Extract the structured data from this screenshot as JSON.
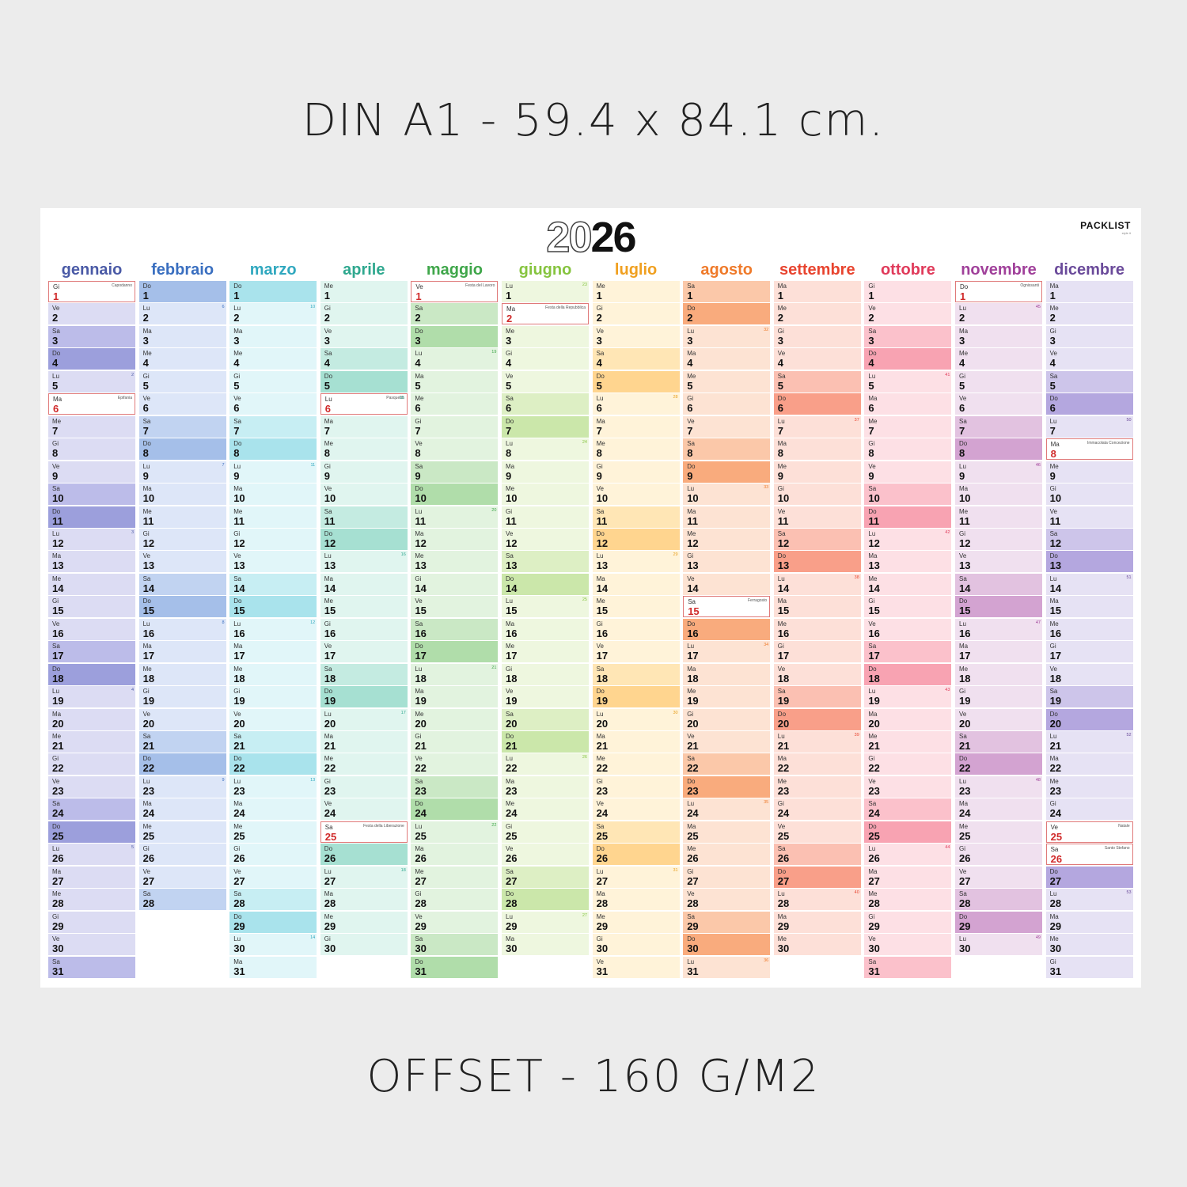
{
  "captions": {
    "top": "DIN A1 - 59.4 x 84.1 cm.",
    "bottom": "OFFSET - 160 G/M2"
  },
  "calendar": {
    "year_parts": [
      "20",
      "26"
    ],
    "brand": "PACKLIST",
    "brand_sub": "style it",
    "weekday_abbrevs": [
      "Lu",
      "Ma",
      "Me",
      "Gi",
      "Ve",
      "Sa",
      "Do"
    ],
    "months": [
      {
        "name": "gennaio",
        "days": 31,
        "start_weekday": 3,
        "title_color": "#4a5aa6",
        "weekday_bg": "#dcdcf3",
        "saturday_bg": "#bcbce9",
        "sunday_bg": "#9c9fdc",
        "week_color": "#4a5aa6",
        "week_numbers": {
          "5": "2",
          "12": "3",
          "19": "4",
          "26": "5"
        },
        "holidays": {
          "1": "Capodanno",
          "6": "Epifania"
        }
      },
      {
        "name": "febbraio",
        "days": 28,
        "start_weekday": 6,
        "title_color": "#3a6fc0",
        "weekday_bg": "#dde6f8",
        "saturday_bg": "#c1d3f1",
        "sunday_bg": "#a5bfe9",
        "week_color": "#3a6fc0",
        "week_numbers": {
          "2": "6",
          "9": "7",
          "16": "8",
          "23": "9"
        },
        "holidays": {}
      },
      {
        "name": "marzo",
        "days": 31,
        "start_weekday": 6,
        "title_color": "#30a8bf",
        "weekday_bg": "#e1f6f9",
        "saturday_bg": "#c7eef3",
        "sunday_bg": "#a9e3ec",
        "week_color": "#30a8bf",
        "week_numbers": {
          "2": "10",
          "9": "11",
          "16": "12",
          "23": "13",
          "30": "14"
        },
        "holidays": {}
      },
      {
        "name": "aprile",
        "days": 30,
        "start_weekday": 2,
        "title_color": "#2fa88f",
        "weekday_bg": "#e0f5ef",
        "saturday_bg": "#c4ebe1",
        "sunday_bg": "#a6e0d2",
        "week_color": "#2fa88f",
        "week_numbers": {
          "6": "15",
          "13": "16",
          "20": "17",
          "27": "18"
        },
        "holidays": {
          "6": "Pasquetta",
          "25": "Festa della Liberazione"
        }
      },
      {
        "name": "maggio",
        "days": 31,
        "start_weekday": 4,
        "title_color": "#3fa64a",
        "weekday_bg": "#e2f3df",
        "saturday_bg": "#cae8c5",
        "sunday_bg": "#b0ddaa",
        "week_color": "#3fa64a",
        "week_numbers": {
          "4": "19",
          "11": "20",
          "18": "21",
          "25": "22"
        },
        "holidays": {
          "1": "Festa del Lavoro"
        }
      },
      {
        "name": "giugno",
        "days": 30,
        "start_weekday": 0,
        "title_color": "#86c43f",
        "weekday_bg": "#eef7df",
        "saturday_bg": "#ddefc4",
        "sunday_bg": "#cbe7aa",
        "week_color": "#86c43f",
        "week_numbers": {
          "1": "23",
          "8": "24",
          "15": "25",
          "22": "26",
          "29": "27"
        },
        "holidays": {
          "2": "Festa della Repubblica"
        }
      },
      {
        "name": "luglio",
        "days": 31,
        "start_weekday": 2,
        "title_color": "#f0a020",
        "weekday_bg": "#fff3d9",
        "saturday_bg": "#ffe6b5",
        "sunday_bg": "#ffd58f",
        "week_color": "#e8a020",
        "week_numbers": {
          "6": "28",
          "13": "29",
          "20": "30",
          "27": "31"
        },
        "holidays": {}
      },
      {
        "name": "agosto",
        "days": 31,
        "start_weekday": 5,
        "title_color": "#ef7a2a",
        "weekday_bg": "#fde3d3",
        "saturday_bg": "#fbc8a9",
        "sunday_bg": "#f9ab7d",
        "week_color": "#ef7a2a",
        "week_numbers": {
          "3": "32",
          "10": "33",
          "17": "34",
          "24": "35",
          "31": "36"
        },
        "holidays": {
          "15": "Ferragosto"
        }
      },
      {
        "name": "settembre",
        "days": 30,
        "start_weekday": 1,
        "title_color": "#e8442f",
        "weekday_bg": "#fde0d8",
        "saturday_bg": "#fbc0b2",
        "sunday_bg": "#f99f89",
        "week_color": "#e8442f",
        "week_numbers": {
          "7": "37",
          "14": "38",
          "21": "39",
          "28": "40"
        },
        "holidays": {}
      },
      {
        "name": "ottobre",
        "days": 31,
        "start_weekday": 3,
        "title_color": "#e03a5a",
        "weekday_bg": "#fde0e5",
        "saturday_bg": "#fbc1cb",
        "sunday_bg": "#f8a3b2",
        "week_color": "#e03a5a",
        "week_numbers": {
          "5": "41",
          "12": "42",
          "19": "43",
          "26": "44"
        },
        "holidays": {}
      },
      {
        "name": "novembre",
        "days": 30,
        "start_weekday": 6,
        "title_color": "#a0409a",
        "weekday_bg": "#f0e0ef",
        "saturday_bg": "#e2c2e0",
        "sunday_bg": "#d3a3d1",
        "week_color": "#a0409a",
        "week_numbers": {
          "2": "45",
          "9": "46",
          "16": "47",
          "23": "48",
          "30": "49"
        },
        "holidays": {
          "1": "Ognissanti"
        }
      },
      {
        "name": "dicembre",
        "days": 31,
        "start_weekday": 1,
        "title_color": "#6a4a9a",
        "weekday_bg": "#e6e2f4",
        "saturday_bg": "#cdc5ea",
        "sunday_bg": "#b4a7df",
        "week_color": "#6a4a9a",
        "week_numbers": {
          "7": "50",
          "14": "51",
          "21": "52",
          "28": "53"
        },
        "holidays": {
          "8": "Immacolata Concezione",
          "25": "Natale",
          "26": "Santo Stefano"
        }
      }
    ]
  }
}
